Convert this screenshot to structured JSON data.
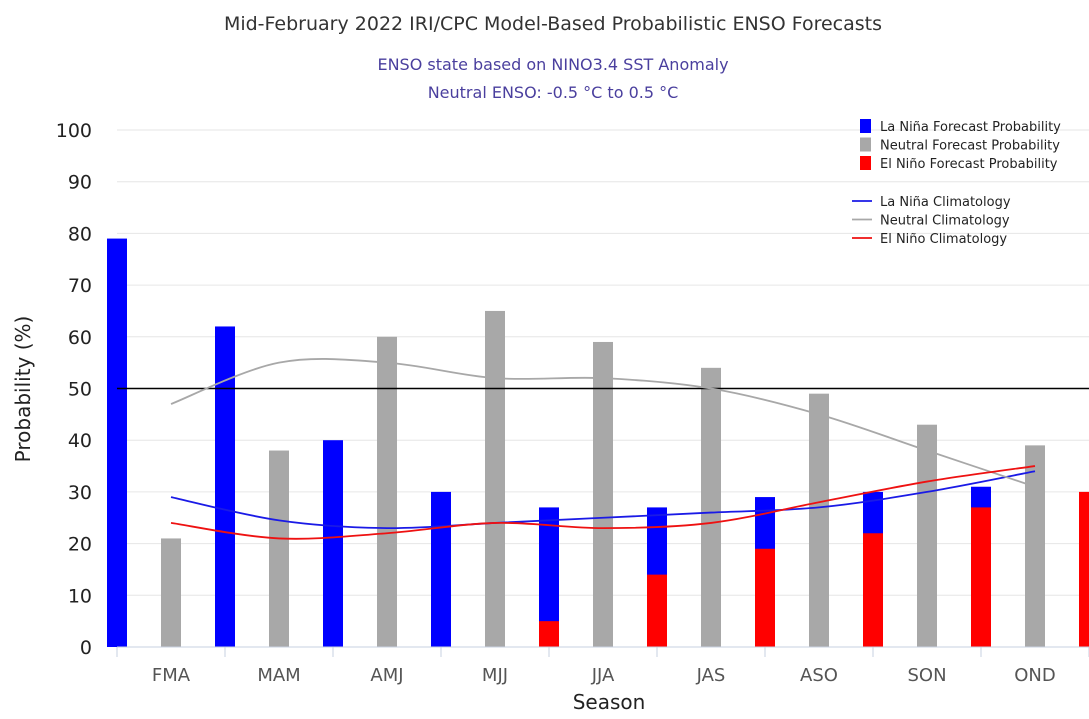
{
  "chart_data": {
    "type": "bar",
    "title": "Mid-February 2022 IRI/CPC Model-Based Probabilistic ENSO Forecasts",
    "subtitle_lines": [
      "ENSO state based on NINO3.4 SST Anomaly",
      "Neutral ENSO: -0.5 °C to 0.5 °C"
    ],
    "xlabel": "Season",
    "ylabel": "Probability (%)",
    "ylim": [
      0,
      100
    ],
    "yticks": [
      0,
      10,
      20,
      30,
      40,
      50,
      60,
      70,
      80,
      90,
      100
    ],
    "reference_line": 50,
    "categories": [
      "FMA",
      "MAM",
      "AMJ",
      "MJJ",
      "JJA",
      "JAS",
      "ASO",
      "SON",
      "OND"
    ],
    "series": [
      {
        "name": "La Niña Forecast Probability",
        "color": "#0000ff",
        "values": [
          79,
          62,
          40,
          30,
          27,
          27,
          29,
          30,
          31
        ]
      },
      {
        "name": "Neutral Forecast Probability",
        "color": "#a8a8a8",
        "values": [
          21,
          38,
          60,
          65,
          59,
          54,
          49,
          43,
          39
        ]
      },
      {
        "name": "El Niño Forecast Probability",
        "color": "#ff0000",
        "values": [
          0,
          0,
          0,
          5,
          14,
          19,
          22,
          27,
          30
        ]
      }
    ],
    "climatology": [
      {
        "name": "La Niña Climatology",
        "color": "#1a1ae6",
        "values": [
          29,
          24.5,
          23,
          24,
          25,
          26,
          27,
          30,
          34
        ]
      },
      {
        "name": "Neutral Climatology",
        "color": "#a8a8a8",
        "values": [
          47,
          55,
          55,
          52,
          52,
          50,
          45,
          38,
          31
        ]
      },
      {
        "name": "El Niño Climatology",
        "color": "#ee1111",
        "values": [
          24,
          21,
          22,
          24,
          23,
          24,
          28,
          32,
          35
        ]
      }
    ],
    "legend_position": "top-right"
  }
}
